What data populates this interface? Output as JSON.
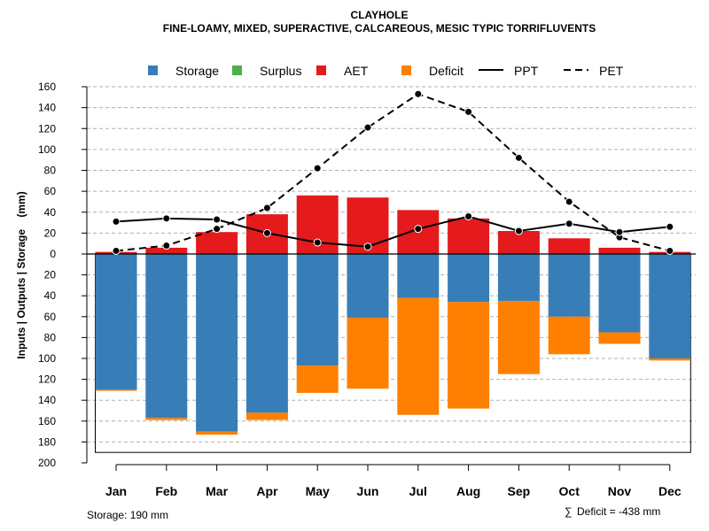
{
  "chart_data": {
    "type": "bar",
    "title": "CLAYHOLE",
    "subtitle": "FINE-LOAMY, MIXED, SUPERACTIVE, CALCAREOUS, MESIC TYPIC TORRIFLUVENTS",
    "ylabel": "Inputs | Outputs | Storage    (mm)",
    "xlabel": "",
    "categories": [
      "Jan",
      "Feb",
      "Mar",
      "Apr",
      "May",
      "Jun",
      "Jul",
      "Aug",
      "Sep",
      "Oct",
      "Nov",
      "Dec"
    ],
    "ylim": [
      -200,
      160
    ],
    "yticks": [
      {
        "value": 160,
        "label": "160"
      },
      {
        "value": 140,
        "label": "140"
      },
      {
        "value": 120,
        "label": "120"
      },
      {
        "value": 100,
        "label": "100"
      },
      {
        "value": 80,
        "label": "80"
      },
      {
        "value": 60,
        "label": "60"
      },
      {
        "value": 40,
        "label": "40"
      },
      {
        "value": 20,
        "label": "20"
      },
      {
        "value": 0,
        "label": "0"
      },
      {
        "value": -20,
        "label": "20"
      },
      {
        "value": -40,
        "label": "40"
      },
      {
        "value": -60,
        "label": "60"
      },
      {
        "value": -80,
        "label": "80"
      },
      {
        "value": -100,
        "label": "100"
      },
      {
        "value": -120,
        "label": "120"
      },
      {
        "value": -140,
        "label": "140"
      },
      {
        "value": -160,
        "label": "160"
      },
      {
        "value": -180,
        "label": "180"
      },
      {
        "value": -200,
        "label": "200"
      }
    ],
    "series": [
      {
        "name": "Storage",
        "color": "#377eb8",
        "values": [
          130,
          157,
          170,
          152,
          107,
          61,
          42,
          46,
          45,
          60,
          75,
          100
        ]
      },
      {
        "name": "Surplus",
        "color": "#4daf4a",
        "values": [
          0,
          0,
          0,
          0,
          0,
          0,
          0,
          0,
          0,
          0,
          0,
          0
        ]
      },
      {
        "name": "AET",
        "color": "#e41a1c",
        "values": [
          2,
          6,
          21,
          38,
          56,
          54,
          42,
          34,
          22,
          15,
          6,
          2
        ]
      },
      {
        "name": "Deficit",
        "color": "#ff7f00",
        "values": [
          1,
          2,
          3,
          7,
          26,
          68,
          112,
          102,
          70,
          36,
          11,
          2
        ]
      },
      {
        "name": "PPT",
        "color": "#000000",
        "style": "solid",
        "values": [
          31,
          34,
          33,
          20,
          11,
          7,
          24,
          36,
          22,
          29,
          21,
          26
        ]
      },
      {
        "name": "PET",
        "color": "#000000",
        "style": "dashed",
        "values": [
          3,
          8,
          24,
          44,
          82,
          121,
          153,
          136,
          92,
          50,
          16,
          3
        ]
      }
    ],
    "storage_capacity": 190,
    "grid": true,
    "legend_position": "top"
  },
  "footnotes": {
    "storage": "Storage: 190 mm",
    "deficit_symbol": "∑",
    "deficit": "Deficit = -438 mm"
  }
}
